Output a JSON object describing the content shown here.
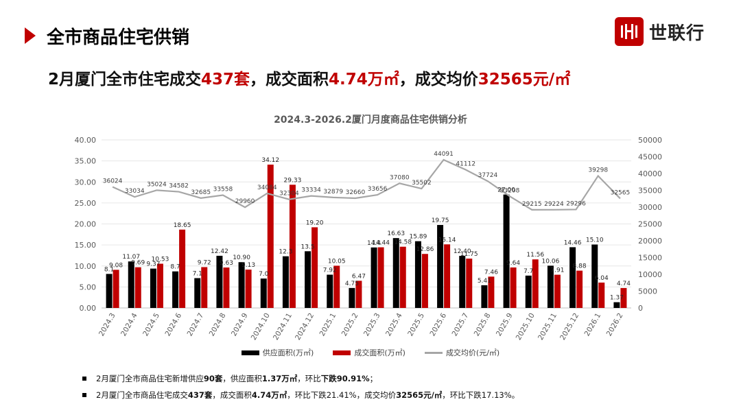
{
  "header": {
    "section_title": "全市商品住宅供销",
    "logo_text": "世联行",
    "headline": {
      "p1": "2月厦门全市住宅成交",
      "v1": "437套",
      "p2": "，成交面积",
      "v2": "4.74万㎡",
      "p3": "，成交均价",
      "v3": "32565元/㎡"
    }
  },
  "colors": {
    "supply": "#000000",
    "deal": "#c00000",
    "price": "#a6a6a6",
    "accent": "#c00000"
  },
  "chart_data": {
    "type": "bar+line",
    "title": "2024.3-2026.2厦门月度商品住宅供销分析",
    "categories": [
      "2024.3",
      "2024.4",
      "2024.5",
      "2024.6",
      "2024.7",
      "2024.8",
      "2024.9",
      "2024.10",
      "2024.11",
      "2024.12",
      "2025.1",
      "2025.2",
      "2025.3",
      "2025.4",
      "2025.5",
      "2025.6",
      "2025.7",
      "2025.8",
      "2025.9",
      "2025.10",
      "2025.11",
      "2025.12",
      "2026.1",
      "2026.2"
    ],
    "series": [
      {
        "name": "供应面积(万㎡)",
        "axis": "left",
        "kind": "bar",
        "values": [
          8.1,
          11.07,
          9.37,
          8.7,
          7.1,
          12.42,
          10.9,
          7.0,
          12.3,
          13.5,
          7.92,
          4.75,
          14.4,
          16.63,
          15.89,
          19.75,
          12.4,
          5.41,
          27.0,
          7.7,
          10.06,
          14.46,
          15.1,
          1.37
        ],
        "labels": [
          "8.1",
          "11.07",
          "9.37",
          "8.7",
          "7.1",
          "12.42",
          "10.90",
          "7.0",
          "12.3",
          "13.5",
          "7.92",
          "4.75",
          "14.4",
          "16.63",
          "15.89",
          "19.75",
          "12.40",
          "5.41",
          "27.00",
          "7.7",
          "10.06",
          "14.46",
          "15.10",
          "1.37"
        ]
      },
      {
        "name": "成交面积(万㎡)",
        "axis": "left",
        "kind": "bar",
        "values": [
          9.08,
          9.69,
          10.53,
          18.65,
          9.72,
          9.63,
          9.13,
          34.12,
          29.33,
          19.2,
          10.05,
          6.47,
          14.44,
          14.58,
          12.86,
          15.14,
          11.75,
          7.46,
          9.64,
          11.56,
          7.91,
          8.88,
          6.04,
          4.74
        ],
        "labels": [
          "9.08",
          "9.69",
          "10.53",
          "18.65",
          "9.72",
          "9.63",
          "9.13",
          "34.12",
          "29.33",
          "19.20",
          "10.05",
          "6.47",
          "14.44",
          "14.58",
          "12.86",
          "15.14",
          "11.75",
          "7.46",
          "9.64",
          "11.56",
          "7.91",
          "8.88",
          "6.04",
          "4.74"
        ]
      },
      {
        "name": "成交均价(元/㎡)",
        "axis": "right",
        "kind": "line",
        "values": [
          36024,
          33034,
          35024,
          34582,
          32685,
          33558,
          29960,
          34084,
          32304,
          33334,
          32879,
          32660,
          33656,
          37080,
          35502,
          44091,
          41112,
          37724,
          33208,
          29215,
          29224,
          29296,
          39298,
          32565
        ],
        "labels": [
          "36024",
          "33034",
          "35024",
          "34582",
          "32685",
          "33558",
          "29960",
          "34084",
          "32304",
          "33334",
          "32879",
          "32660",
          "33656",
          "37080",
          "35502",
          "44091",
          "41112",
          "37724",
          "33208",
          "29215",
          "29224",
          "29296",
          "39298",
          "32565"
        ]
      }
    ],
    "left_axis": {
      "ylim": [
        0,
        40
      ],
      "ticks": [
        "0.00",
        "5.00",
        "10.00",
        "15.00",
        "20.00",
        "25.00",
        "30.00",
        "35.00",
        "40.00"
      ]
    },
    "right_axis": {
      "ylim": [
        0,
        50000
      ],
      "ticks": [
        "0",
        "5000",
        "10000",
        "15000",
        "20000",
        "25000",
        "30000",
        "35000",
        "40000",
        "45000",
        "50000"
      ]
    },
    "legend": [
      "供应面积(万㎡)",
      "成交面积(万㎡)",
      "成交均价(元/㎡)"
    ]
  },
  "notes": [
    {
      "a": "2月厦门全市商品住宅新增供应",
      "b": "90套",
      "c": "，供应面积",
      "d": "1.37万㎡",
      "e": "，环比",
      "f": "下跌90.91%",
      "g": "；"
    },
    {
      "a": "2月厦门全市商品住宅成交",
      "b": "437套",
      "c": "，成交面积",
      "d": "4.74万㎡",
      "e": "，环比下跌21.41%，成交均价",
      "f": "32565元/㎡",
      "g": "，环比下跌17.13%。"
    }
  ]
}
